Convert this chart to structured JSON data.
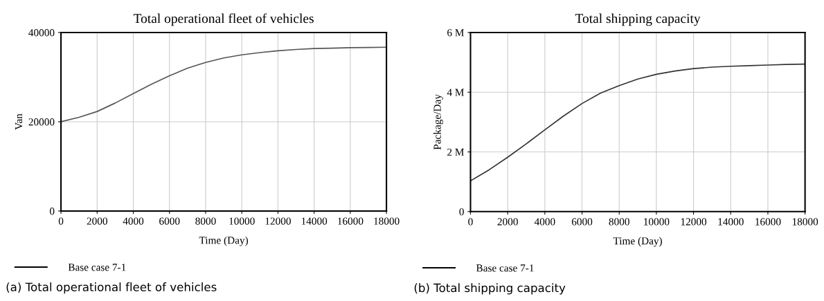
{
  "chart_data": [
    {
      "type": "line",
      "title": "Total operational fleet of vehicles",
      "xlabel": "Time (Day)",
      "ylabel": "Van",
      "x": [
        0,
        1000,
        2000,
        3000,
        4000,
        5000,
        6000,
        7000,
        8000,
        9000,
        10000,
        11000,
        12000,
        13000,
        14000,
        15000,
        16000,
        17000,
        18000
      ],
      "series": [
        {
          "name": "Base case 7-1",
          "color": "#555555",
          "values": [
            20000,
            21000,
            22300,
            24200,
            26300,
            28400,
            30300,
            32000,
            33300,
            34300,
            35000,
            35500,
            35900,
            36200,
            36400,
            36500,
            36600,
            36650,
            36700
          ]
        }
      ],
      "xlim": [
        0,
        18000
      ],
      "xticks": [
        0,
        2000,
        4000,
        6000,
        8000,
        10000,
        12000,
        14000,
        16000,
        18000
      ],
      "ylim": [
        0,
        40000
      ],
      "yticks": [
        0,
        20000,
        40000
      ],
      "grid": true,
      "legend": "bottom",
      "annotations": [
        "(a) Total operational fleet of vehicles"
      ]
    },
    {
      "type": "line",
      "title": "Total shipping capacity",
      "xlabel": "Time (Day)",
      "ylabel": "Package/Day",
      "x": [
        0,
        1000,
        2000,
        3000,
        4000,
        5000,
        6000,
        7000,
        8000,
        9000,
        10000,
        11000,
        12000,
        13000,
        14000,
        15000,
        16000,
        17000,
        18000
      ],
      "series": [
        {
          "name": "Base case 7-1",
          "color": "#333333",
          "values": [
            1030000,
            1400000,
            1820000,
            2270000,
            2740000,
            3200000,
            3620000,
            3970000,
            4220000,
            4440000,
            4600000,
            4710000,
            4790000,
            4840000,
            4870000,
            4890000,
            4910000,
            4930000,
            4940000
          ]
        }
      ],
      "xlim": [
        0,
        18000
      ],
      "xticks": [
        0,
        2000,
        4000,
        6000,
        8000,
        10000,
        12000,
        14000,
        16000,
        18000
      ],
      "ylim": [
        0,
        6000000
      ],
      "yticks": [
        0,
        {
          "value": 2000000,
          "label": "2 M"
        },
        {
          "value": 4000000,
          "label": "4 M"
        },
        {
          "value": 6000000,
          "label": "6 M"
        }
      ],
      "grid": true,
      "legend": "bottom",
      "annotations": [
        "(b) Total shipping capacity"
      ]
    }
  ]
}
